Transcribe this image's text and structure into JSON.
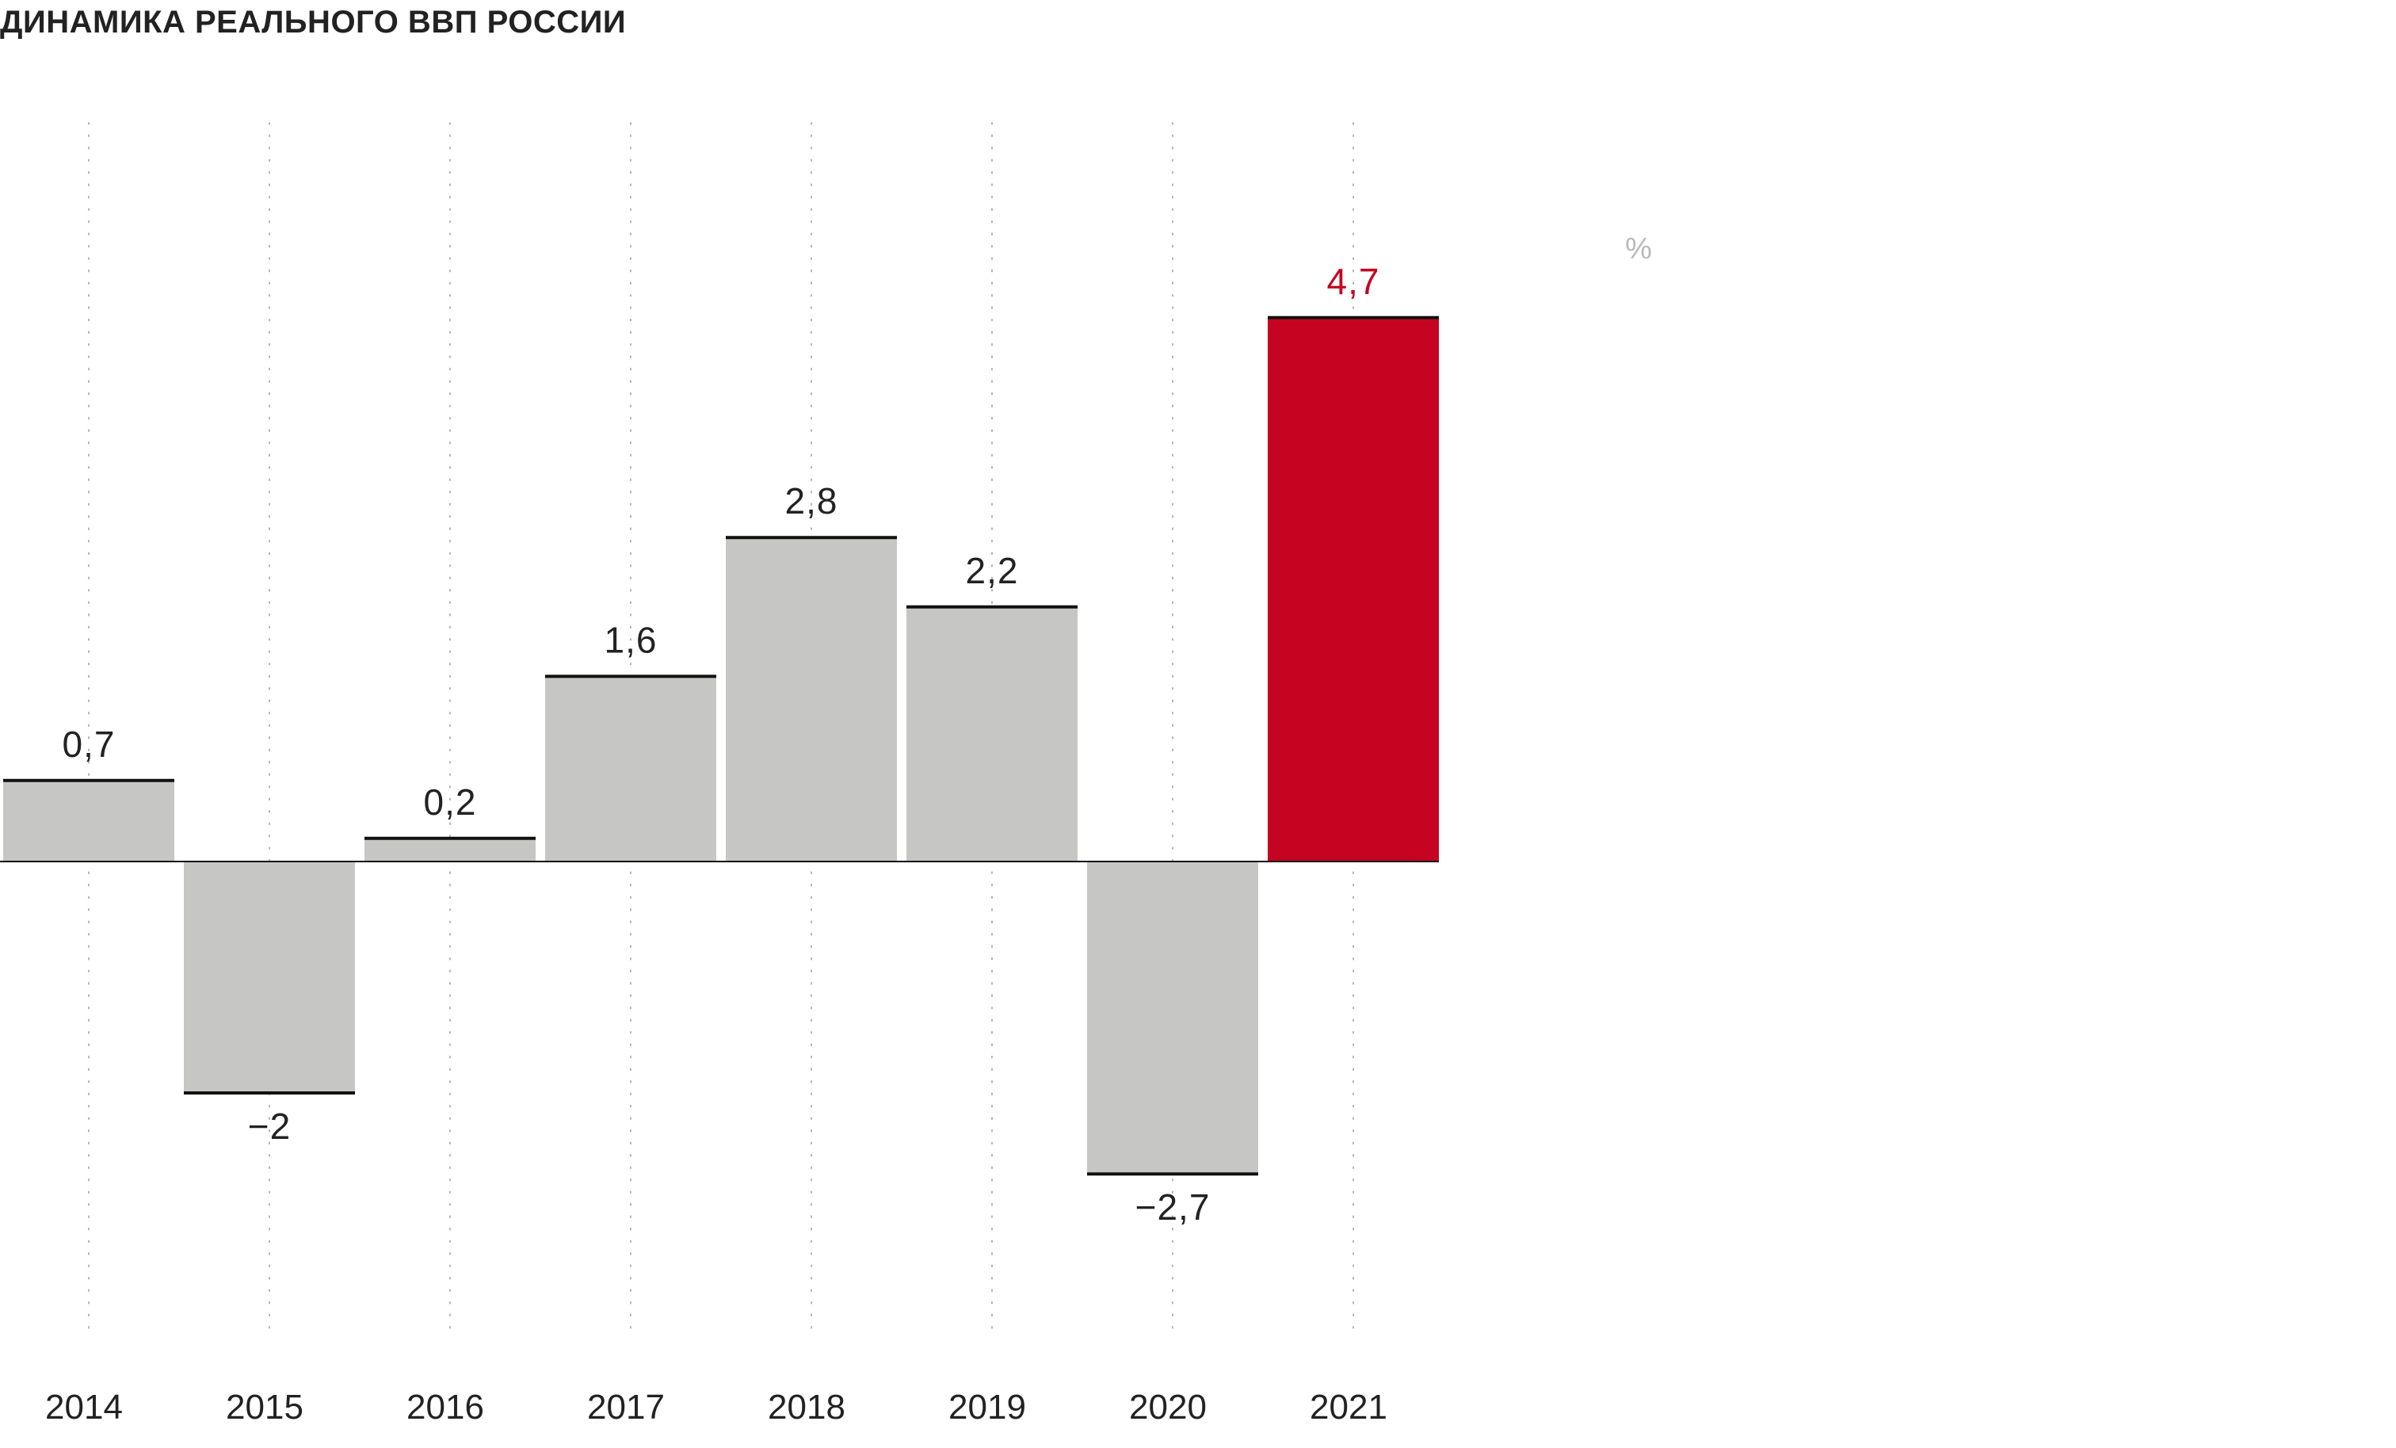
{
  "chart_data": {
    "type": "bar",
    "title": "ДИНАМИКА РЕАЛЬНОГО ВВП РОССИИ",
    "unit": "%",
    "categories": [
      "2014",
      "2015",
      "2016",
      "2017",
      "2018",
      "2019",
      "2020",
      "2021"
    ],
    "values": [
      0.7,
      -2,
      0.2,
      1.6,
      2.8,
      2.2,
      -2.7,
      4.7
    ],
    "value_labels": [
      "0,7",
      "−2",
      "0,2",
      "1,6",
      "2,8",
      "2,2",
      "−2,7",
      "4,7"
    ],
    "highlight_index": 7,
    "ylim": [
      -4,
      5.4
    ],
    "xlabel": "",
    "ylabel": "",
    "grid": "vertical dotted",
    "legend": "none"
  },
  "colors": {
    "bar": "#c6c6c4",
    "highlight": "#c50422",
    "bar_cap": "#111111",
    "label": "#222222",
    "highlight_label": "#c50422",
    "gridline": "#b4b4b4",
    "baseline": "#111111",
    "unit": "#b9b9b9"
  }
}
